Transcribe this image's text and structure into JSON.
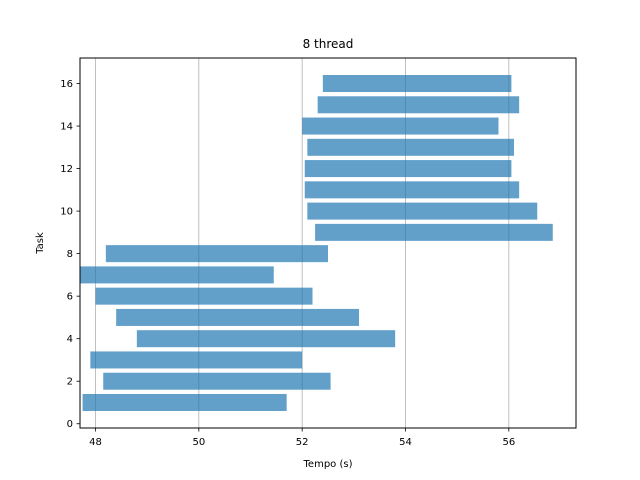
{
  "chart_data": {
    "type": "bar",
    "orientation": "horizontal",
    "title": "8 thread",
    "xlabel": "Tempo (s)",
    "ylabel": "Task",
    "xlim": [
      47.7,
      57.3
    ],
    "ylim": [
      -0.2,
      17.2
    ],
    "xticks": [
      48,
      50,
      52,
      54,
      56
    ],
    "yticks": [
      0,
      2,
      4,
      6,
      8,
      10,
      12,
      14,
      16
    ],
    "grid": "x",
    "bar_color": "#1f77b4",
    "bar_opacity": 0.7,
    "bars": [
      {
        "task": 1,
        "start": 47.75,
        "end": 51.7
      },
      {
        "task": 2,
        "start": 48.15,
        "end": 52.55
      },
      {
        "task": 3,
        "start": 47.9,
        "end": 52.0
      },
      {
        "task": 4,
        "start": 48.8,
        "end": 53.8
      },
      {
        "task": 5,
        "start": 48.4,
        "end": 53.1
      },
      {
        "task": 6,
        "start": 48.0,
        "end": 52.2
      },
      {
        "task": 7,
        "start": 47.7,
        "end": 51.45
      },
      {
        "task": 8,
        "start": 48.2,
        "end": 52.5
      },
      {
        "task": 9,
        "start": 52.25,
        "end": 56.85
      },
      {
        "task": 10,
        "start": 52.1,
        "end": 56.55
      },
      {
        "task": 11,
        "start": 52.05,
        "end": 56.2
      },
      {
        "task": 12,
        "start": 52.05,
        "end": 56.05
      },
      {
        "task": 13,
        "start": 52.1,
        "end": 56.1
      },
      {
        "task": 14,
        "start": 52.0,
        "end": 55.8
      },
      {
        "task": 15,
        "start": 52.3,
        "end": 56.2
      },
      {
        "task": 16,
        "start": 52.4,
        "end": 56.05
      }
    ]
  }
}
